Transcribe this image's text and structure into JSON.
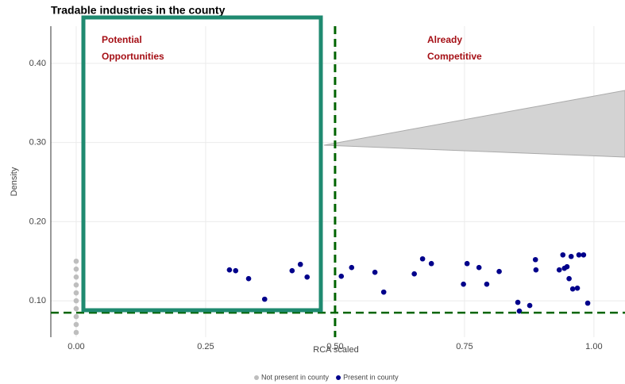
{
  "chart_data": {
    "type": "scatter",
    "title": "Tradable industries in the county",
    "x_label": "RCA scaled",
    "y_label": "Density",
    "xlim": [
      -0.049,
      1.06
    ],
    "ylim": [
      0.054,
      0.447
    ],
    "xticks": [
      {
        "value": 0,
        "label": "0.00"
      },
      {
        "value": 0.25,
        "label": "0.25"
      },
      {
        "value": 0.5,
        "label": "0.50"
      },
      {
        "value": 0.75,
        "label": "0.75"
      },
      {
        "value": 1,
        "label": "1.00"
      }
    ],
    "yticks": [
      {
        "value": 0.1,
        "label": "0.10"
      },
      {
        "value": 0.2,
        "label": "0.20"
      },
      {
        "value": 0.3,
        "label": "0.30"
      },
      {
        "value": 0.4,
        "label": "0.40"
      }
    ],
    "grid": true,
    "legend": "bottom",
    "reference_lines": {
      "x": 0.5,
      "y": 0.085,
      "color": "#006400"
    },
    "annotations": [
      "Potential",
      "Opportunities",
      "Already",
      "Competitive"
    ],
    "series": [
      {
        "name": "Not present in county",
        "color": "#bebebe",
        "x": [
          0,
          0,
          0,
          0,
          0,
          0,
          0,
          0,
          0,
          0
        ],
        "values": [
          0.06,
          0.07,
          0.08,
          0.09,
          0.1,
          0.11,
          0.12,
          0.13,
          0.14,
          0.15
        ]
      },
      {
        "name": "Present in county",
        "color": "#00008b",
        "x": [
          0.296,
          0.308,
          0.333,
          0.364,
          0.417,
          0.433,
          0.446,
          0.512,
          0.532,
          0.577,
          0.594,
          0.653,
          0.669,
          0.686,
          0.748,
          0.755,
          0.778,
          0.793,
          0.817,
          0.853,
          0.856,
          0.876,
          0.887,
          0.888,
          0.933,
          0.94,
          0.943,
          0.948,
          0.952,
          0.956,
          0.959,
          0.968,
          0.971,
          0.98,
          0.988
        ],
        "values": [
          0.139,
          0.138,
          0.128,
          0.102,
          0.138,
          0.146,
          0.13,
          0.131,
          0.142,
          0.136,
          0.111,
          0.134,
          0.153,
          0.147,
          0.121,
          0.147,
          0.142,
          0.121,
          0.137,
          0.098,
          0.087,
          0.094,
          0.152,
          0.139,
          0.139,
          0.158,
          0.141,
          0.143,
          0.128,
          0.156,
          0.115,
          0.116,
          0.158,
          0.158,
          0.097
        ]
      }
    ]
  }
}
